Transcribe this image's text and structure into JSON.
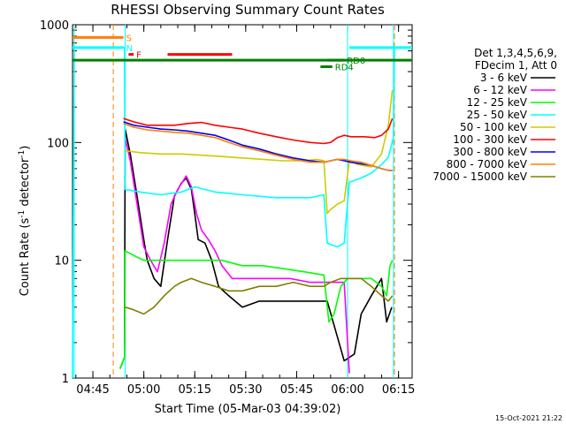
{
  "chart_data": {
    "type": "line",
    "title": "RHESSI Observing Summary Count Rates",
    "xlabel": "Start Time (05-Mar-03 04:39:02)",
    "ylabel_main": "Count Rate (s",
    "ylabel_sup": "-1",
    "ylabel_rest": " detector",
    "ylabel_sup2": "-1",
    "ylabel_end": ")",
    "y_scale": "log",
    "ylim": [
      1,
      1000
    ],
    "xlim_minutes": [
      0,
      100
    ],
    "x_ticks": [
      {
        "m": 6,
        "label": "04:45"
      },
      {
        "m": 21,
        "label": "05:00"
      },
      {
        "m": 36,
        "label": "05:15"
      },
      {
        "m": 51,
        "label": "05:30"
      },
      {
        "m": 66,
        "label": "05:45"
      },
      {
        "m": 81,
        "label": "06:00"
      },
      {
        "m": 96,
        "label": "06:15"
      }
    ],
    "y_ticks": [
      {
        "v": 1,
        "label": "1"
      },
      {
        "v": 10,
        "label": "10"
      },
      {
        "v": 100,
        "label": "100"
      },
      {
        "v": 1000,
        "label": "1000"
      }
    ],
    "legend_header": [
      "Det 1,3,4,5,6,9,",
      "FDecim 1, Att 0"
    ],
    "legend_placement": "right",
    "series": [
      {
        "name": "3 - 6 keV",
        "color": "#000000",
        "points": [
          [
            14,
            1.2
          ],
          [
            15.3,
            1.5
          ],
          [
            15.5,
            130
          ],
          [
            17,
            80
          ],
          [
            19,
            35
          ],
          [
            21,
            15
          ],
          [
            22,
            10
          ],
          [
            24,
            7
          ],
          [
            26,
            6
          ],
          [
            28,
            15
          ],
          [
            30,
            35
          ],
          [
            32,
            45
          ],
          [
            33.5,
            50
          ],
          [
            35,
            40
          ],
          [
            36,
            25
          ],
          [
            37,
            15
          ],
          [
            39,
            14
          ],
          [
            41,
            10
          ],
          [
            43,
            6
          ],
          [
            46,
            5
          ],
          [
            50,
            4
          ],
          [
            55,
            4.5
          ],
          [
            60,
            4.5
          ],
          [
            65,
            4.5
          ],
          [
            70,
            4.5
          ],
          [
            75,
            4.5
          ],
          [
            80,
            1.4
          ],
          [
            83,
            1.6
          ],
          [
            85,
            3.5
          ],
          [
            88,
            5
          ],
          [
            91,
            7
          ],
          [
            92.5,
            3
          ],
          [
            94,
            4
          ]
        ]
      },
      {
        "name": "6 - 12 keV",
        "color": "#ff00ff",
        "points": [
          [
            15.5,
            110
          ],
          [
            17,
            70
          ],
          [
            19,
            30
          ],
          [
            21,
            13
          ],
          [
            23,
            10
          ],
          [
            25,
            8
          ],
          [
            27,
            14
          ],
          [
            29,
            30
          ],
          [
            31,
            40
          ],
          [
            33.5,
            52
          ],
          [
            35,
            42
          ],
          [
            36.5,
            25
          ],
          [
            38,
            18
          ],
          [
            40,
            15
          ],
          [
            42,
            12
          ],
          [
            44,
            9
          ],
          [
            47,
            7
          ],
          [
            52,
            7
          ],
          [
            58,
            7
          ],
          [
            64,
            7
          ],
          [
            70,
            6.5
          ],
          [
            75,
            6.5
          ],
          [
            80,
            6.5
          ],
          [
            81.5,
            1.1
          ]
        ]
      },
      {
        "name": "12 - 25 keV",
        "color": "#00ff00",
        "points": [
          [
            14,
            1.2
          ],
          [
            15.3,
            1.5
          ],
          [
            15.5,
            12
          ],
          [
            18,
            11
          ],
          [
            21,
            10
          ],
          [
            26,
            10
          ],
          [
            32,
            10
          ],
          [
            38,
            10
          ],
          [
            44,
            10
          ],
          [
            50,
            9
          ],
          [
            56,
            9
          ],
          [
            62,
            8.5
          ],
          [
            68,
            8
          ],
          [
            74,
            7.5
          ],
          [
            75.5,
            3
          ],
          [
            77,
            3.5
          ],
          [
            79,
            6
          ],
          [
            81,
            7
          ],
          [
            84,
            7
          ],
          [
            88,
            7
          ],
          [
            91,
            6
          ],
          [
            92.5,
            5
          ],
          [
            93.5,
            9
          ],
          [
            94.2,
            10
          ]
        ]
      },
      {
        "name": "25 - 50 keV",
        "color": "#00ffff",
        "points": [
          [
            0,
            1
          ],
          [
            0.5,
            640
          ],
          [
            15.3,
            640
          ],
          [
            15.5,
            40
          ],
          [
            20,
            38
          ],
          [
            26,
            36
          ],
          [
            32,
            38
          ],
          [
            36,
            42
          ],
          [
            42,
            38
          ],
          [
            50,
            36
          ],
          [
            60,
            34
          ],
          [
            70,
            34
          ],
          [
            74,
            36
          ],
          [
            75,
            14
          ],
          [
            78,
            13
          ],
          [
            80,
            14
          ],
          [
            81.5,
            46
          ],
          [
            85,
            50
          ],
          [
            88,
            55
          ],
          [
            91,
            65
          ],
          [
            93,
            75
          ],
          [
            94.5,
            110
          ],
          [
            94.8,
            640
          ],
          [
            100,
            640
          ]
        ]
      },
      {
        "name": "50 - 100 keV",
        "color": "#cccc00",
        "points": [
          [
            15.5,
            85
          ],
          [
            20,
            82
          ],
          [
            26,
            80
          ],
          [
            32,
            80
          ],
          [
            38,
            78
          ],
          [
            44,
            76
          ],
          [
            50,
            74
          ],
          [
            56,
            72
          ],
          [
            62,
            70
          ],
          [
            68,
            70
          ],
          [
            72,
            72
          ],
          [
            74,
            70
          ],
          [
            75,
            25
          ],
          [
            76,
            27
          ],
          [
            78,
            30
          ],
          [
            80,
            32
          ],
          [
            81.5,
            70
          ],
          [
            84,
            65
          ],
          [
            88,
            62
          ],
          [
            91,
            80
          ],
          [
            93,
            140
          ],
          [
            94.2,
            280
          ]
        ]
      },
      {
        "name": "100 - 300 keV",
        "color": "#ff0000",
        "points": [
          [
            15,
            160
          ],
          [
            18,
            150
          ],
          [
            22,
            140
          ],
          [
            26,
            140
          ],
          [
            30,
            140
          ],
          [
            34,
            145
          ],
          [
            38,
            148
          ],
          [
            42,
            140
          ],
          [
            46,
            135
          ],
          [
            50,
            130
          ],
          [
            55,
            120
          ],
          [
            60,
            112
          ],
          [
            65,
            105
          ],
          [
            70,
            100
          ],
          [
            74,
            98
          ],
          [
            76,
            100
          ],
          [
            78,
            110
          ],
          [
            80,
            115
          ],
          [
            82,
            112
          ],
          [
            86,
            112
          ],
          [
            89,
            110
          ],
          [
            91,
            115
          ],
          [
            93,
            130
          ],
          [
            94.2,
            160
          ]
        ]
      },
      {
        "name": "300 - 800 keV",
        "color": "#0000ff",
        "points": [
          [
            15,
            150
          ],
          [
            18,
            140
          ],
          [
            22,
            135
          ],
          [
            26,
            130
          ],
          [
            30,
            128
          ],
          [
            34,
            125
          ],
          [
            38,
            120
          ],
          [
            42,
            115
          ],
          [
            46,
            105
          ],
          [
            50,
            95
          ],
          [
            55,
            88
          ],
          [
            60,
            80
          ],
          [
            65,
            74
          ],
          [
            70,
            70
          ],
          [
            74,
            68
          ],
          [
            76,
            70
          ],
          [
            78,
            72
          ],
          [
            80,
            70
          ],
          [
            82,
            68
          ],
          [
            85,
            66
          ],
          [
            88,
            64
          ],
          [
            91,
            60
          ],
          [
            93,
            58
          ],
          [
            94.2,
            58
          ]
        ]
      },
      {
        "name": "800 - 7000 keV",
        "color": "#ff8000",
        "points": [
          [
            15,
            145
          ],
          [
            18,
            135
          ],
          [
            22,
            128
          ],
          [
            26,
            125
          ],
          [
            30,
            122
          ],
          [
            34,
            120
          ],
          [
            38,
            115
          ],
          [
            42,
            110
          ],
          [
            46,
            100
          ],
          [
            50,
            92
          ],
          [
            55,
            85
          ],
          [
            60,
            78
          ],
          [
            65,
            72
          ],
          [
            70,
            68
          ],
          [
            74,
            68
          ],
          [
            76,
            70
          ],
          [
            78,
            72
          ],
          [
            80,
            72
          ],
          [
            82,
            70
          ],
          [
            85,
            68
          ],
          [
            88,
            64
          ],
          [
            91,
            60
          ],
          [
            93,
            58
          ],
          [
            94.2,
            58
          ]
        ]
      },
      {
        "name": "7000 - 15000 keV",
        "color": "#808000",
        "points": [
          [
            15.5,
            4
          ],
          [
            18,
            3.8
          ],
          [
            21,
            3.5
          ],
          [
            24,
            4
          ],
          [
            27,
            5
          ],
          [
            30,
            6
          ],
          [
            32,
            6.5
          ],
          [
            35,
            7
          ],
          [
            38,
            6.5
          ],
          [
            42,
            6
          ],
          [
            46,
            5.5
          ],
          [
            50,
            5.5
          ],
          [
            55,
            6
          ],
          [
            60,
            6
          ],
          [
            65,
            6.5
          ],
          [
            70,
            6
          ],
          [
            74,
            6
          ],
          [
            76,
            6.5
          ],
          [
            79,
            7
          ],
          [
            82,
            7
          ],
          [
            85,
            7
          ],
          [
            88,
            6
          ],
          [
            91,
            5
          ],
          [
            93,
            4.5
          ],
          [
            94.2,
            5
          ]
        ]
      }
    ],
    "top_bars": [
      {
        "label": "S",
        "color": "#ff8000",
        "from_m": 0,
        "to_m": 15,
        "level": 780
      },
      {
        "label": "N",
        "color": "#00ffff",
        "from_m": 0,
        "to_m": 15,
        "level": 640
      },
      {
        "label": "F",
        "color": "#ff0000",
        "from_m": 16.5,
        "to_m": 18,
        "level": 560
      },
      {
        "label": "",
        "color": "#ff0000",
        "from_m": 28,
        "to_m": 47,
        "level": 560
      },
      {
        "label": "",
        "color": "#008000",
        "from_m": 0,
        "to_m": 100,
        "level": 500
      },
      {
        "label": "RD0",
        "color": "#008000",
        "from_m": 75,
        "to_m": 80,
        "level": 500
      },
      {
        "label": "RD4",
        "color": "#008000",
        "from_m": 73,
        "to_m": 76.5,
        "level": 440
      },
      {
        "label": "",
        "color": "#00ffff",
        "from_m": 81.5,
        "to_m": 100,
        "level": 640
      }
    ],
    "vlines": [
      {
        "m": 12,
        "color": "#ff8000",
        "style": "dashed"
      },
      {
        "m": 15.5,
        "color": "#00ffff",
        "style": "dashed"
      },
      {
        "m": 0.5,
        "color": "#00ffff",
        "style": "solid"
      },
      {
        "m": 15.5,
        "color": "#00ffff",
        "style": "solid"
      },
      {
        "m": 81,
        "color": "#00ffff",
        "style": "solid"
      },
      {
        "m": 94.5,
        "color": "#00ffff",
        "style": "solid"
      },
      {
        "m": 94.8,
        "color": "#ff8000",
        "style": "dashed"
      }
    ],
    "footer_date": "15-Oct-2021 21:22"
  }
}
